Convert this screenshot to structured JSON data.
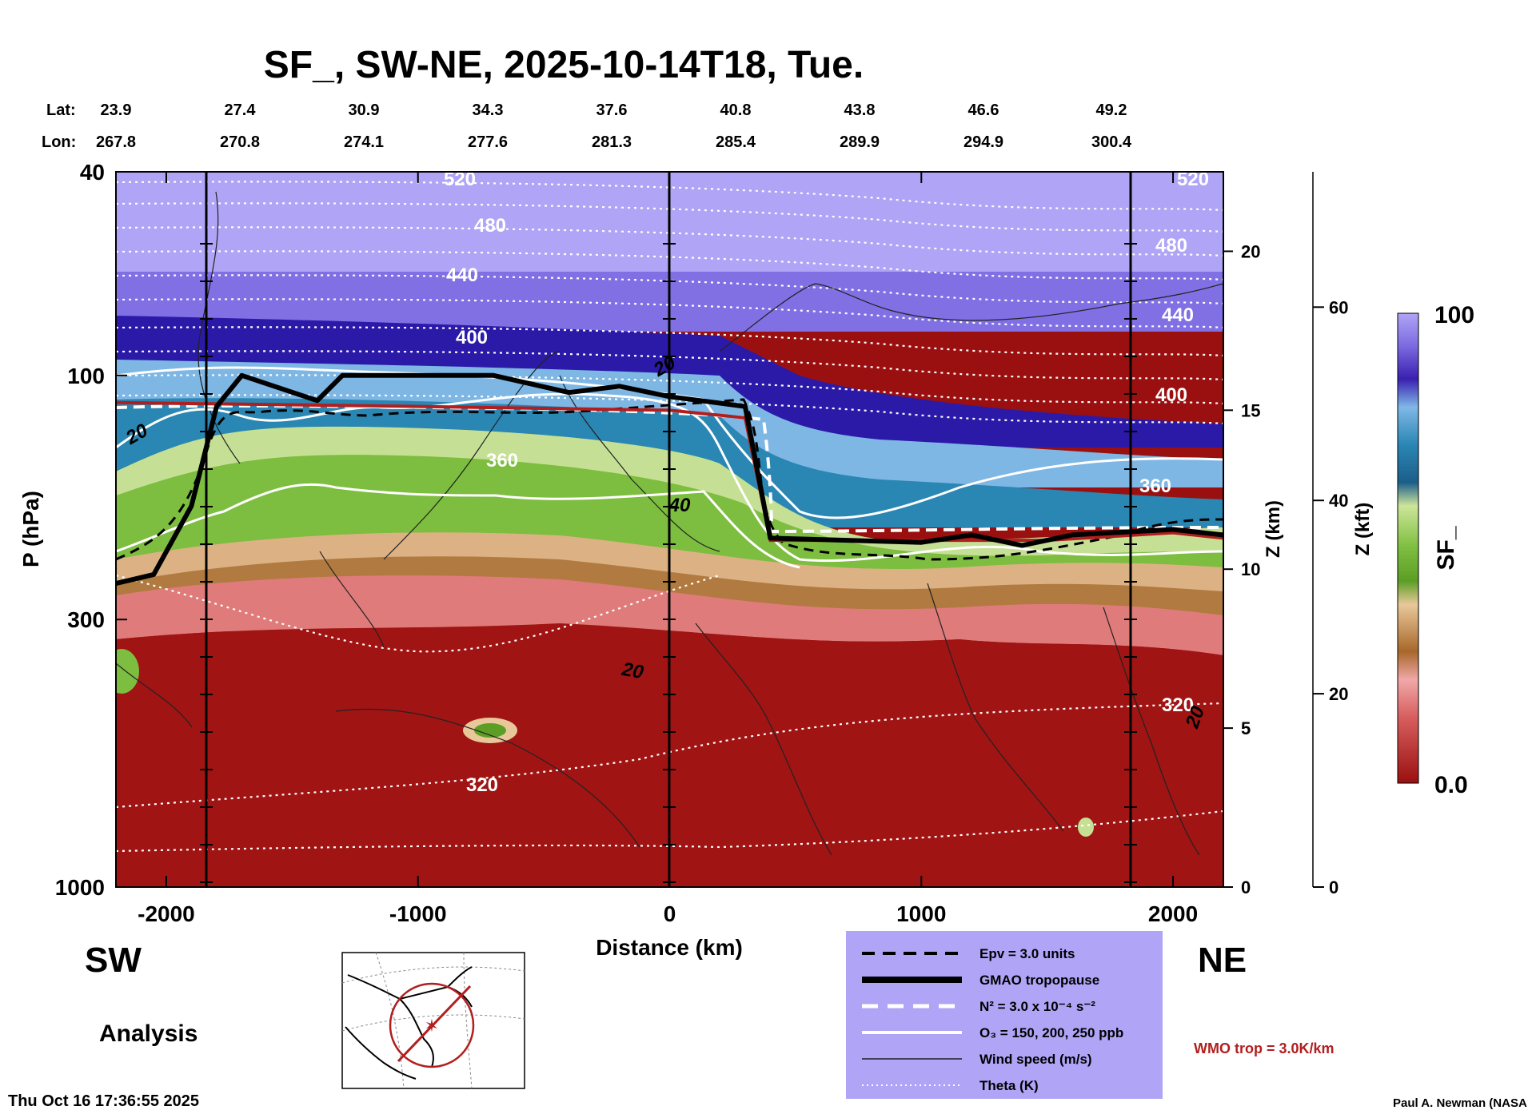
{
  "title": "SF_, SW-NE, 2025-10-14T18, Tue.",
  "lat_label": "Lat:",
  "lon_label": "Lon:",
  "lat_values": [
    "23.9",
    "27.4",
    "30.9",
    "34.3",
    "37.6",
    "40.8",
    "43.8",
    "46.6",
    "49.2"
  ],
  "lon_values": [
    "267.8",
    "270.8",
    "274.1",
    "277.6",
    "281.3",
    "285.4",
    "289.9",
    "294.9",
    "300.4"
  ],
  "left_corner": "SW",
  "right_corner": "NE",
  "analysis_label": "Analysis",
  "timestamp": "Thu Oct 16 17:36:55 2025",
  "credit": "Paul A. Newman (NASA",
  "wmo_note": "WMO trop = 3.0K/km",
  "colors": {
    "wmo_red": "#b21e1e",
    "legend_bg": "#b0a4f6"
  },
  "legend": {
    "items": [
      {
        "style": "dashed-black",
        "label": "Epv = 3.0 units"
      },
      {
        "style": "thick-black",
        "label": "GMAO tropopause"
      },
      {
        "style": "dashed-white",
        "label": "N² = 3.0 x 10⁻⁴ s⁻²"
      },
      {
        "style": "solid-white",
        "label": "O₃ = 150, 200, 250 ppb"
      },
      {
        "style": "thin-black",
        "label": "Wind speed (m/s)"
      },
      {
        "style": "dotted-white",
        "label": "Theta (K)"
      }
    ]
  },
  "colorbar": {
    "label": "SF_",
    "max_label": "100",
    "min_label": "0.0"
  },
  "chart_data": {
    "type": "heatmap",
    "xlabel": "Distance (km)",
    "ylabel": "P (hPa)",
    "y2label": "Z (km)",
    "y3label": "Z (kft)",
    "xlim": [
      -2200,
      2200
    ],
    "ylim": [
      1000,
      40
    ],
    "y_scale": "log",
    "xticks": [
      "-2000",
      "-1000",
      "0",
      "1000",
      "2000"
    ],
    "yticks": [
      "40",
      "100",
      "300",
      "1000"
    ],
    "z_km_ticks": [
      "0",
      "5",
      "10",
      "15",
      "20"
    ],
    "z_kft_ticks": [
      "0",
      "20",
      "40",
      "60"
    ],
    "theta_labels": [
      "520",
      "480",
      "440",
      "400",
      "360",
      "320"
    ],
    "wind_labels": [
      "20",
      "40"
    ],
    "gmao_tropopause_hpa": [
      [
        -2200,
        255
      ],
      [
        -2050,
        245
      ],
      [
        -1900,
        180
      ],
      [
        -1800,
        115
      ],
      [
        -1700,
        100
      ],
      [
        -1400,
        112
      ],
      [
        -1300,
        100
      ],
      [
        -1000,
        100
      ],
      [
        -700,
        100
      ],
      [
        -400,
        108
      ],
      [
        -200,
        105
      ],
      [
        0,
        110
      ],
      [
        300,
        115
      ],
      [
        400,
        208
      ],
      [
        1000,
        212
      ],
      [
        1200,
        205
      ],
      [
        1400,
        215
      ],
      [
        1600,
        205
      ],
      [
        2000,
        200
      ],
      [
        2200,
        205
      ]
    ],
    "wmo_tropopause_hpa": [
      [
        -2200,
        113
      ],
      [
        -1000,
        115
      ],
      [
        0,
        117
      ],
      [
        300,
        121
      ],
      [
        400,
        210
      ],
      [
        1000,
        210
      ],
      [
        1500,
        210
      ],
      [
        2000,
        203
      ],
      [
        2200,
        208
      ]
    ]
  }
}
